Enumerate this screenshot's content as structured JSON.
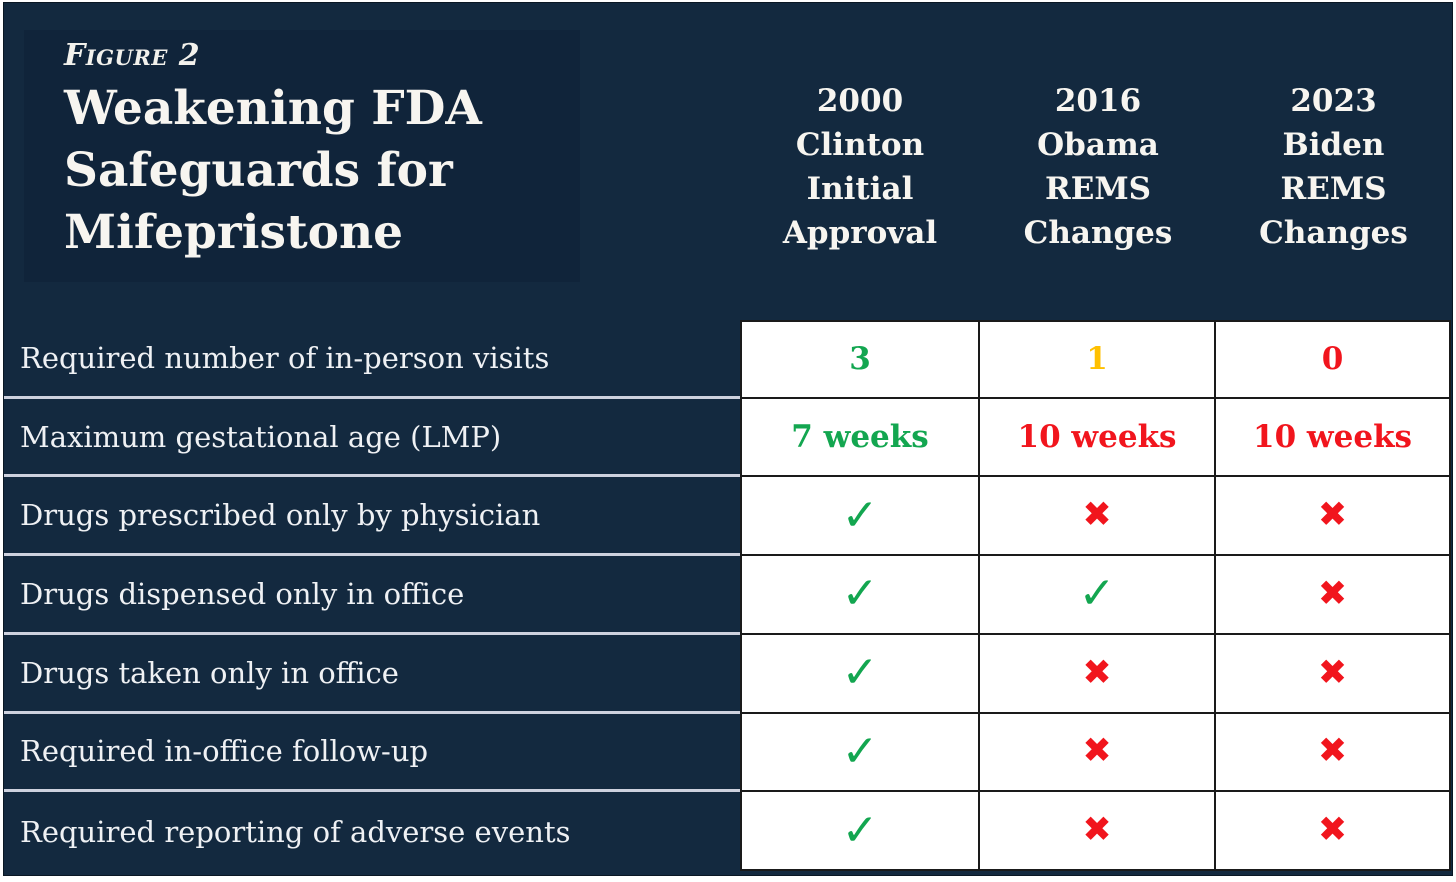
{
  "figure": {
    "label": "Figure 2",
    "title": "Weakening FDA Safeguards for Mifepristone"
  },
  "column_headers": [
    {
      "text": "2000\nClinton\nInitial\nApproval"
    },
    {
      "text": "2016\nObama\nREMS\nChanges"
    },
    {
      "text": "2023\nBiden\nREMS\nChanges"
    }
  ],
  "rows": [
    {
      "label": "Required number of in-person visits",
      "cells": [
        {
          "kind": "value",
          "text": "3",
          "color": "green"
        },
        {
          "kind": "value",
          "text": "1",
          "color": "amber"
        },
        {
          "kind": "value",
          "text": "0",
          "color": "red"
        }
      ]
    },
    {
      "label": "Maximum gestational age (LMP)",
      "cells": [
        {
          "kind": "value",
          "text": "7 weeks",
          "color": "green"
        },
        {
          "kind": "value",
          "text": "10 weeks",
          "color": "red"
        },
        {
          "kind": "value",
          "text": "10 weeks",
          "color": "red"
        }
      ]
    },
    {
      "label": "Drugs prescribed only by physician",
      "cells": [
        {
          "kind": "check"
        },
        {
          "kind": "cross"
        },
        {
          "kind": "cross"
        }
      ]
    },
    {
      "label": "Drugs dispensed only in office",
      "cells": [
        {
          "kind": "check"
        },
        {
          "kind": "check"
        },
        {
          "kind": "cross"
        }
      ]
    },
    {
      "label": "Drugs taken only in office",
      "cells": [
        {
          "kind": "check"
        },
        {
          "kind": "cross"
        },
        {
          "kind": "cross"
        }
      ]
    },
    {
      "label": "Required in-office follow-up",
      "cells": [
        {
          "kind": "check"
        },
        {
          "kind": "cross"
        },
        {
          "kind": "cross"
        }
      ]
    },
    {
      "label": "Required reporting of adverse events",
      "cells": [
        {
          "kind": "check"
        },
        {
          "kind": "cross"
        },
        {
          "kind": "cross"
        }
      ]
    }
  ],
  "icons": {
    "check": "✓",
    "cross": "✖"
  },
  "colors": {
    "background": "#13293F",
    "title_panel": "#10243A",
    "heading_text": "#F7F5F0",
    "label_text": "#EFF1F4",
    "cell_background": "#FFFFFF",
    "cell_border": "#1A1A1A",
    "row_divider": "#CDD1DE",
    "green": "#13A650",
    "amber": "#FFC000",
    "red": "#F1151D"
  },
  "chart_data": {
    "type": "table",
    "figure_label": "Figure 2",
    "title": "Weakening FDA Safeguards for Mifepristone",
    "columns": [
      "2000 Clinton Initial Approval",
      "2016 Obama REMS Changes",
      "2023 Biden REMS Changes"
    ],
    "rows": [
      {
        "label": "Required number of in-person visits",
        "values": [
          "3",
          "1",
          "0"
        ]
      },
      {
        "label": "Maximum gestational age (LMP)",
        "values": [
          "7 weeks",
          "10 weeks",
          "10 weeks"
        ]
      },
      {
        "label": "Drugs prescribed only by physician",
        "values": [
          "yes",
          "no",
          "no"
        ]
      },
      {
        "label": "Drugs dispensed only in office",
        "values": [
          "yes",
          "yes",
          "no"
        ]
      },
      {
        "label": "Drugs taken only in office",
        "values": [
          "yes",
          "no",
          "no"
        ]
      },
      {
        "label": "Required in-office follow-up",
        "values": [
          "yes",
          "no",
          "no"
        ]
      },
      {
        "label": "Required reporting of adverse events",
        "values": [
          "yes",
          "no",
          "no"
        ]
      }
    ],
    "legend": "green check = safeguard in place, red x = safeguard removed; value colors: green = original standard, amber = weakened, red = removed/loosest",
    "layout": "row labels on dark navy left column; three white data columns with black gridlines; column headers on navy above"
  }
}
